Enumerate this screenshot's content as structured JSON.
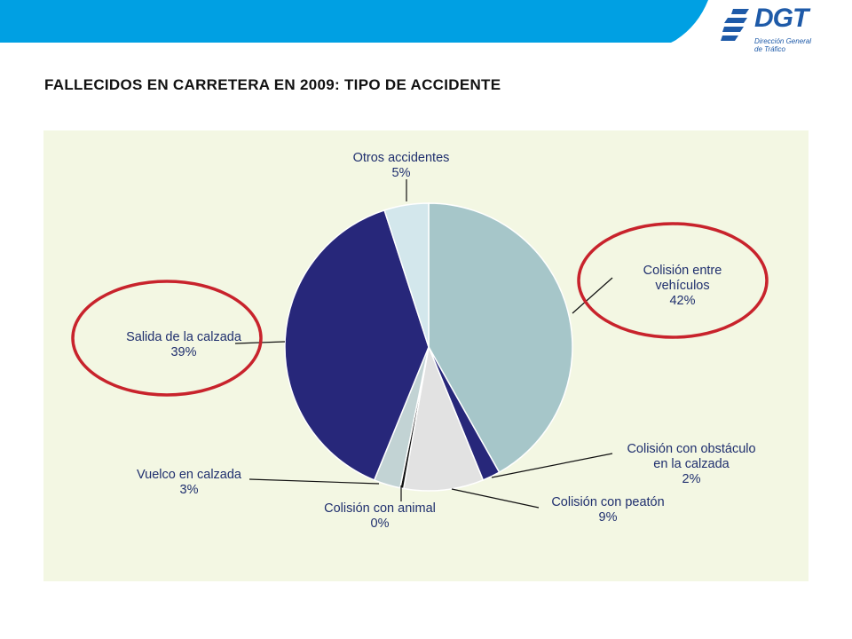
{
  "page": {
    "title": "FALLECIDOS EN CARRETERA EN 2009: TIPO DE ACCIDENTE"
  },
  "logo": {
    "name": "DGT",
    "sub_line1": "Dirección General",
    "sub_line2": "de Tráfico"
  },
  "colors": {
    "banner": "#00a0e3",
    "chart_background": "#f3f7e3",
    "highlight_circle": "#c8232c",
    "label_text": "#1f2f6e"
  },
  "chart_data": {
    "type": "pie",
    "title": "",
    "start": "top",
    "direction": "clockwise",
    "slices": [
      {
        "key": "colision_vehiculos",
        "label_lines": [
          "Colisión entre",
          "vehículos"
        ],
        "pct_label": "42%",
        "value": 42,
        "color": "#a6c6c9"
      },
      {
        "key": "colision_obstaculo",
        "label_lines": [
          "Colisión con obstáculo",
          "en la calzada"
        ],
        "pct_label": "2%",
        "value": 2,
        "color": "#27277a"
      },
      {
        "key": "colision_peaton",
        "label_lines": [
          "Colisión con peatón"
        ],
        "pct_label": "9%",
        "value": 9,
        "color": "#e2e2e2"
      },
      {
        "key": "colision_animal",
        "label_lines": [
          "Colisión con animal"
        ],
        "pct_label": "0%",
        "value": 0.4,
        "color": "#111111"
      },
      {
        "key": "vuelco",
        "label_lines": [
          "Vuelco en calzada"
        ],
        "pct_label": "3%",
        "value": 3,
        "color": "#c2d3d4"
      },
      {
        "key": "salida_calzada",
        "label_lines": [
          "Salida de la calzada"
        ],
        "pct_label": "39%",
        "value": 39,
        "color": "#27277a"
      },
      {
        "key": "otros",
        "label_lines": [
          "Otros accidentes"
        ],
        "pct_label": "5%",
        "value": 5,
        "color": "#d3e7ec"
      }
    ],
    "highlighted": [
      "colision_vehiculos",
      "salida_calzada"
    ]
  }
}
